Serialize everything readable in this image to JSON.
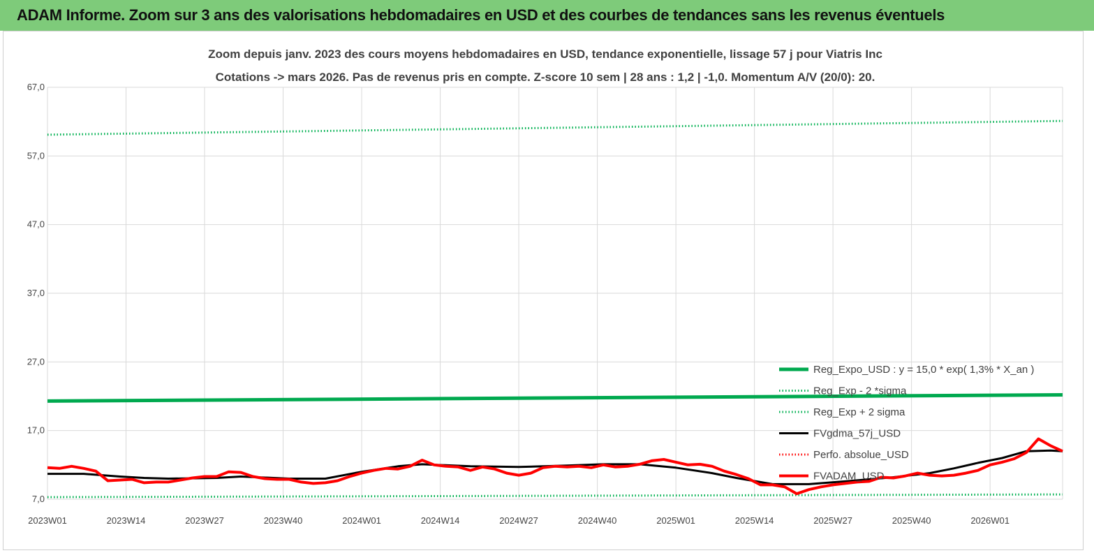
{
  "banner": {
    "title": "ADAM Informe. Zoom sur 3 ans des valorisations hebdomadaires en USD et des courbes de tendances sans les revenus éventuels",
    "color": "#7ecb7a"
  },
  "chart_data": {
    "type": "line",
    "title": "Zoom depuis janv. 2023  des cours moyens hebdomadaires en USD, tendance exponentielle, lissage 57 j pour Viatris Inc",
    "subtitle": "Cotations -> mars 2026. Pas de revenus pris en  compte. Z-score 10 sem  | 28 ans : 1,2  | -1,0. Momentum A/V (20/0): 20.",
    "xlabel": "",
    "ylabel": "",
    "ylim": [
      7,
      67
    ],
    "yticks": [
      "67,0",
      "57,0",
      "47,0",
      "37,0",
      "27,0",
      "17,0",
      "7,0"
    ],
    "ytick_values": [
      67,
      57,
      47,
      37,
      27,
      17,
      7
    ],
    "x_tick_labels": [
      "2023W01",
      "2023W14",
      "2023W27",
      "2023W40",
      "2024W01",
      "2024W14",
      "2024W27",
      "2024W40",
      "2025W01",
      "2025W14",
      "2025W27",
      "2025W40",
      "2026W01"
    ],
    "x_tick_index": [
      0,
      13,
      26,
      39,
      52,
      65,
      78,
      91,
      104,
      117,
      130,
      143,
      156
    ],
    "n_weeks": 169,
    "grid": true,
    "legend_position": "bottom-right",
    "series": [
      {
        "name": "Reg_Expo_USD : y = 15,0 * exp( 1,3% *  X_an )",
        "style": "solid",
        "color": "#00a94f",
        "x": [
          0,
          168
        ],
        "y": [
          21.3,
          22.2
        ]
      },
      {
        "name": "Reg_Exp - 2 *sigma",
        "style": "dotted",
        "color": "#00b050",
        "x": [
          0,
          168
        ],
        "y": [
          7.3,
          7.7
        ]
      },
      {
        "name": "Reg_Exp + 2 sigma",
        "style": "dotted",
        "color": "#00b050",
        "x": [
          0,
          168
        ],
        "y": [
          60.1,
          62.1
        ]
      },
      {
        "name": "FVgdma_57j_USD",
        "style": "solid",
        "color": "#000000",
        "x": [
          0,
          6,
          12,
          16,
          20,
          28,
          32,
          40,
          46,
          52,
          58,
          62,
          70,
          78,
          86,
          92,
          98,
          104,
          110,
          114,
          120,
          126,
          132,
          140,
          146,
          150,
          154,
          158,
          162,
          166,
          168
        ],
        "y": [
          10.7,
          10.7,
          10.3,
          10.1,
          10.0,
          10.1,
          10.3,
          10.0,
          10.0,
          11.0,
          11.8,
          12.1,
          11.8,
          11.7,
          11.9,
          12.1,
          12.1,
          11.6,
          10.8,
          10.1,
          9.2,
          9.2,
          9.6,
          10.2,
          10.8,
          11.5,
          12.3,
          13.0,
          14.0,
          14.1,
          14.0
        ]
      },
      {
        "name": "Perfo. absolue_USD",
        "style": "dotted",
        "color": "#ff0000",
        "x": [],
        "y": []
      },
      {
        "name": "FVADAM_USD",
        "style": "solid",
        "color": "#ff0000",
        "x": [
          0,
          2,
          4,
          6,
          8,
          10,
          12,
          14,
          16,
          18,
          20,
          22,
          24,
          26,
          28,
          30,
          32,
          34,
          36,
          38,
          40,
          42,
          44,
          46,
          48,
          50,
          52,
          54,
          56,
          58,
          60,
          62,
          64,
          66,
          68,
          70,
          72,
          74,
          76,
          78,
          80,
          82,
          84,
          86,
          88,
          90,
          92,
          94,
          96,
          98,
          100,
          102,
          104,
          106,
          108,
          110,
          112,
          114,
          116,
          118,
          120,
          122,
          124,
          126,
          128,
          130,
          132,
          134,
          136,
          138,
          140,
          142,
          144,
          146,
          148,
          150,
          152,
          154,
          156,
          158,
          160,
          162,
          164,
          166,
          168
        ],
        "y": [
          11.6,
          11.5,
          11.8,
          11.5,
          11.1,
          9.7,
          9.8,
          9.9,
          9.4,
          9.5,
          9.5,
          9.8,
          10.1,
          10.3,
          10.3,
          11.0,
          10.9,
          10.3,
          10.0,
          9.9,
          9.9,
          9.5,
          9.3,
          9.4,
          9.7,
          10.3,
          10.8,
          11.2,
          11.5,
          11.4,
          11.8,
          12.7,
          12.0,
          11.8,
          11.7,
          11.2,
          11.7,
          11.4,
          10.8,
          10.5,
          10.8,
          11.6,
          11.8,
          11.7,
          11.8,
          11.6,
          12.0,
          11.7,
          11.8,
          12.1,
          12.6,
          12.8,
          12.4,
          12.0,
          12.1,
          11.8,
          11.1,
          10.6,
          10.0,
          9.1,
          9.1,
          8.8,
          7.8,
          8.4,
          8.8,
          9.1,
          9.3,
          9.5,
          9.6,
          10.2,
          10.1,
          10.4,
          10.8,
          10.5,
          10.4,
          10.5,
          10.8,
          11.2,
          12.0,
          12.4,
          12.9,
          13.8,
          15.8,
          14.8,
          14.0
        ]
      }
    ]
  }
}
